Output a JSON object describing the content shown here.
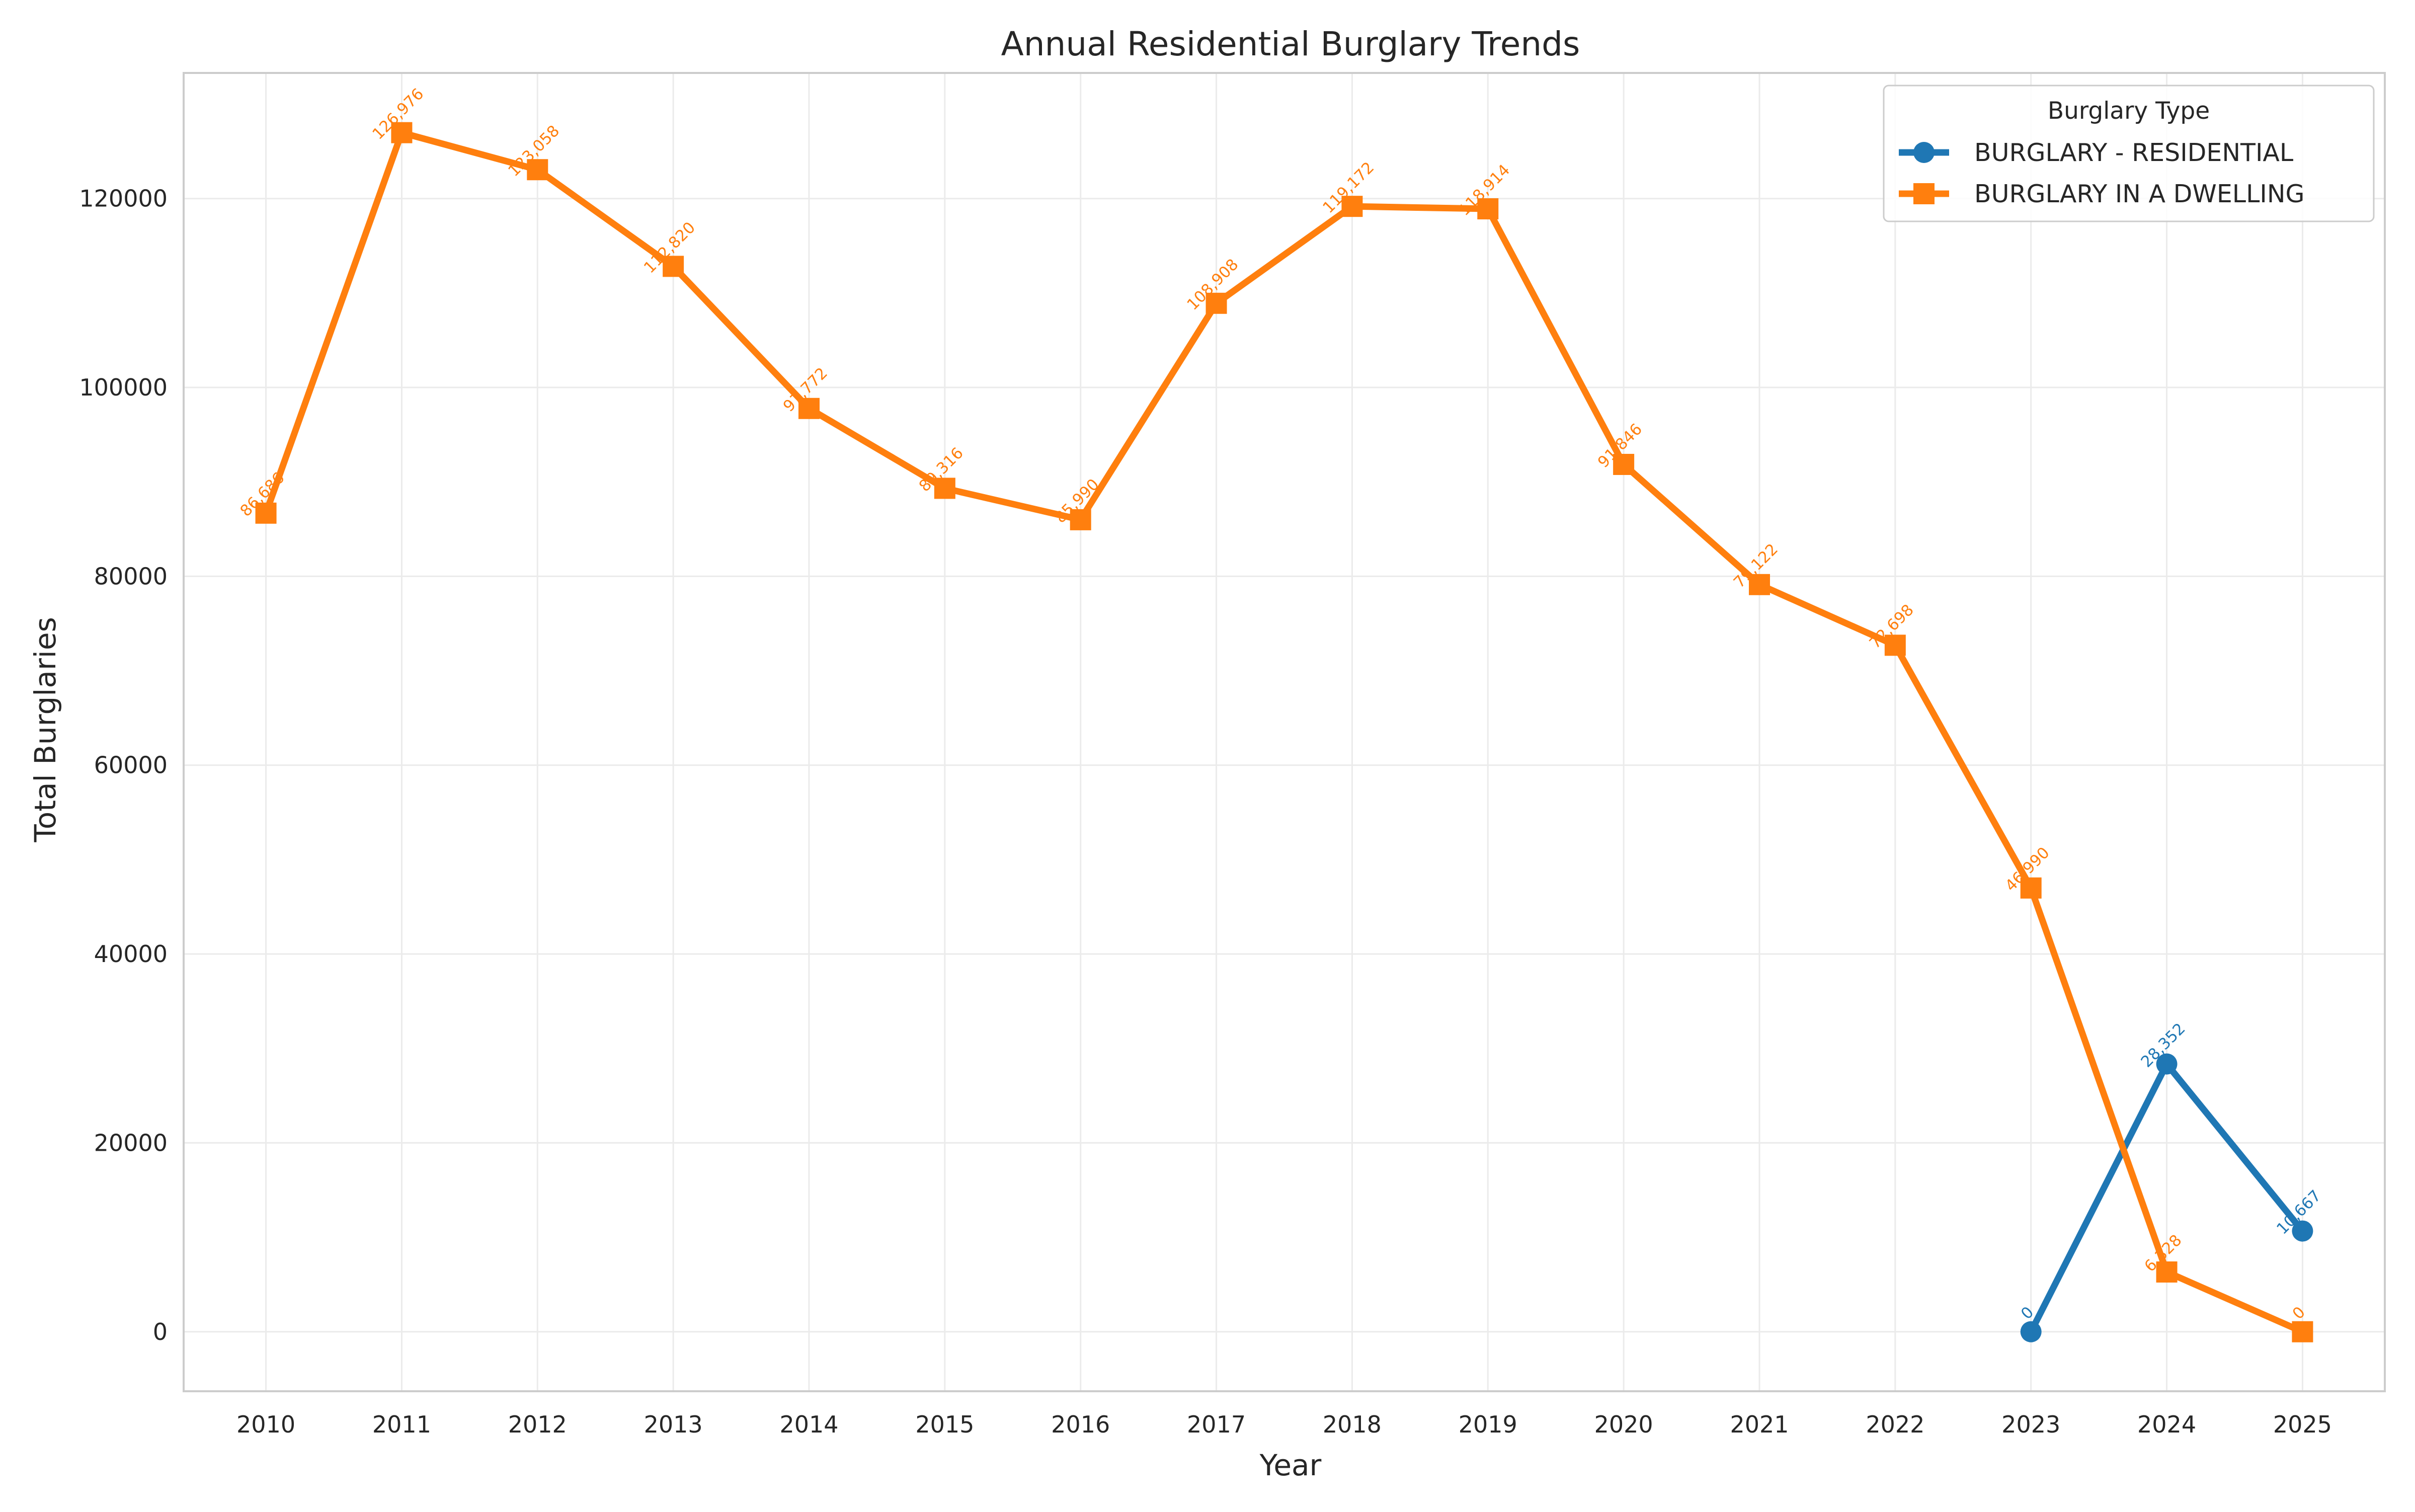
{
  "chart_data": {
    "type": "line",
    "title": "Annual Residential Burglary Trends",
    "xlabel": "Year",
    "ylabel": "Total Burglaries",
    "x": [
      "2010",
      "2011",
      "2012",
      "2013",
      "2014",
      "2015",
      "2016",
      "2017",
      "2018",
      "2019",
      "2020",
      "2021",
      "2022",
      "2023",
      "2024",
      "2025"
    ],
    "ylim": [
      -6300,
      133300
    ],
    "yticks": [
      0,
      20000,
      40000,
      60000,
      80000,
      100000,
      120000
    ],
    "grid": true,
    "legend": {
      "title": "Burglary Type",
      "placement": "top-right"
    },
    "series": [
      {
        "name": "BURGLARY - RESIDENTIAL",
        "color": "#1f77b4",
        "marker": "circle",
        "x": [
          "2023",
          "2024",
          "2025"
        ],
        "values": [
          0,
          28352,
          10667
        ],
        "labels": [
          "0",
          "28,352",
          "10,667"
        ]
      },
      {
        "name": "BURGLARY IN A DWELLING",
        "color": "#ff7f0e",
        "marker": "square",
        "x": [
          "2010",
          "2011",
          "2012",
          "2013",
          "2014",
          "2015",
          "2016",
          "2017",
          "2018",
          "2019",
          "2020",
          "2021",
          "2022",
          "2023",
          "2024",
          "2025"
        ],
        "values": [
          86686,
          126976,
          123058,
          112820,
          97772,
          89316,
          85990,
          108908,
          119172,
          118914,
          91846,
          79122,
          72698,
          46990,
          6328,
          0
        ],
        "labels": [
          "86,686",
          "126,976",
          "123,058",
          "112,820",
          "97,772",
          "89,316",
          "85,990",
          "108,908",
          "119,172",
          "118,914",
          "91,846",
          "79,122",
          "72,698",
          "46,990",
          "6,328",
          "0"
        ]
      }
    ]
  }
}
